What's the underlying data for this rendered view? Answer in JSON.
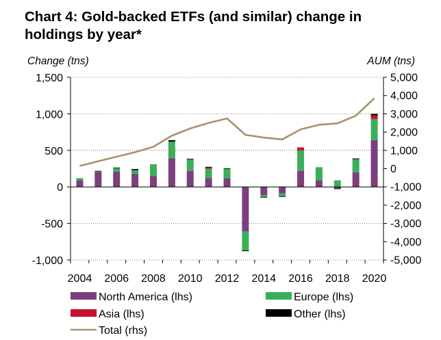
{
  "title_line1": "Chart 4: Gold-backed ETFs (and similar) change in",
  "title_line2": "holdings by year*",
  "chart_data": {
    "type": "bar",
    "stacked": true,
    "ylabel_left": "Change (tns)",
    "ylabel_right": "AUM (tns)",
    "ylim_left": [
      -1000,
      1500
    ],
    "ylim_right": [
      -5000,
      5000
    ],
    "yticks_left": [
      "1,500",
      "1,000",
      "500",
      "0",
      "-500",
      "-1,000"
    ],
    "yticks_right": [
      "5,000",
      "4,000",
      "3,000",
      "2,000",
      "1,000",
      "0",
      "-1,000",
      "-2,000",
      "-3,000",
      "-4,000",
      "-5,000"
    ],
    "xticks": [
      "2004",
      "2006",
      "2008",
      "2010",
      "2012",
      "2014",
      "2016",
      "2018",
      "2020"
    ],
    "categories": [
      "2004",
      "2005",
      "2006",
      "2007",
      "2008",
      "2009",
      "2010",
      "2011",
      "2012",
      "2013",
      "2014",
      "2015",
      "2016",
      "2017",
      "2018",
      "2019",
      "2020"
    ],
    "grid": true,
    "series": [
      {
        "name": "North America (lhs)",
        "color": "#7b3f7e",
        "axis": "left",
        "values": [
          90,
          205,
          210,
          175,
          150,
          390,
          220,
          120,
          120,
          -610,
          -110,
          -90,
          220,
          90,
          -20,
          200,
          640
        ]
      },
      {
        "name": "Europe (lhs)",
        "color": "#3cae5a",
        "axis": "left",
        "values": [
          30,
          10,
          50,
          55,
          160,
          230,
          160,
          130,
          130,
          -260,
          -30,
          -40,
          280,
          180,
          90,
          180,
          290
        ]
      },
      {
        "name": "Asia (lhs)",
        "color": "#c8102e",
        "axis": "left",
        "values": [
          0,
          0,
          0,
          0,
          0,
          0,
          0,
          20,
          0,
          0,
          0,
          0,
          40,
          0,
          0,
          0,
          50
        ]
      },
      {
        "name": "Other (lhs)",
        "color": "#000000",
        "axis": "left",
        "values": [
          0,
          5,
          5,
          15,
          0,
          20,
          5,
          5,
          5,
          -10,
          -5,
          -5,
          0,
          0,
          -10,
          10,
          20
        ]
      },
      {
        "name": "Total (rhs)",
        "type": "line",
        "color": "#a8916a",
        "axis": "right",
        "values": [
          150,
          400,
          650,
          900,
          1200,
          1800,
          2200,
          2500,
          2750,
          1850,
          1700,
          1600,
          2150,
          2400,
          2480,
          2900,
          3850
        ]
      }
    ],
    "legend_position": "bottom"
  }
}
